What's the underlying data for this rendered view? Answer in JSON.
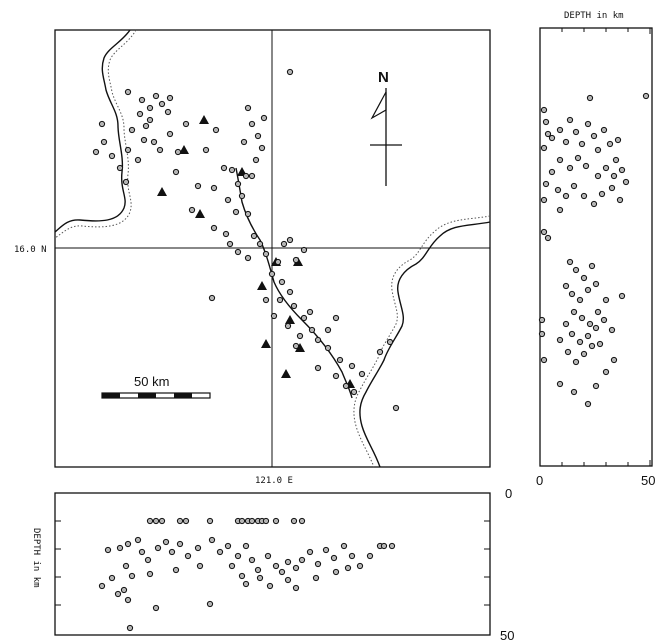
{
  "map": {
    "lat_label": "16.0 N",
    "lon_label": "121.0 E",
    "north_label": "N",
    "scale_label": "50 km"
  },
  "right_panel": {
    "title": "DEPTH in km",
    "tick_min": "0",
    "tick_max": "50"
  },
  "bottom_panel": {
    "ylabel": "DEPTH in km",
    "tick_min": "0",
    "tick_max": "50"
  },
  "colors": {
    "ink": "#111111",
    "dot_fill": "#b5b5b5",
    "background": "#ffffff"
  },
  "icons": [
    "north-arrow-icon",
    "triangle-marker-icon",
    "circle-marker-icon"
  ]
}
